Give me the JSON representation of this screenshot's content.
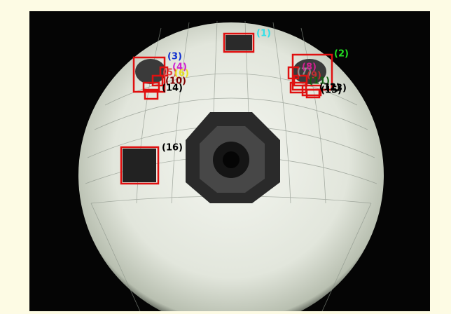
{
  "labels": [
    {
      "text": "(1)",
      "color": "#33e0e8"
    },
    {
      "text": "(2)",
      "color": "#22dd22"
    },
    {
      "text": "(3)",
      "color": "#1030d0"
    },
    {
      "text": "(4)",
      "color": "#d020d0"
    },
    {
      "text": "(5)",
      "color": "#e04040"
    },
    {
      "text": "(6)",
      "color": "#e8e020"
    },
    {
      "text": "(7)",
      "color": "#909090"
    },
    {
      "text": "(8)",
      "color": "#d02090"
    },
    {
      "text": "(9)",
      "color": "#c03030"
    },
    {
      "text": "(10)",
      "color": "#800000"
    },
    {
      "text": "(11)",
      "color": "#106010"
    },
    {
      "text": "(12)",
      "color": "#000000"
    },
    {
      "text": "(13)",
      "color": "#000000"
    },
    {
      "text": "(14)",
      "color": "#000000"
    },
    {
      "text": "(15)",
      "color": "#000000"
    },
    {
      "text": "(16)",
      "color": "#000000"
    }
  ]
}
